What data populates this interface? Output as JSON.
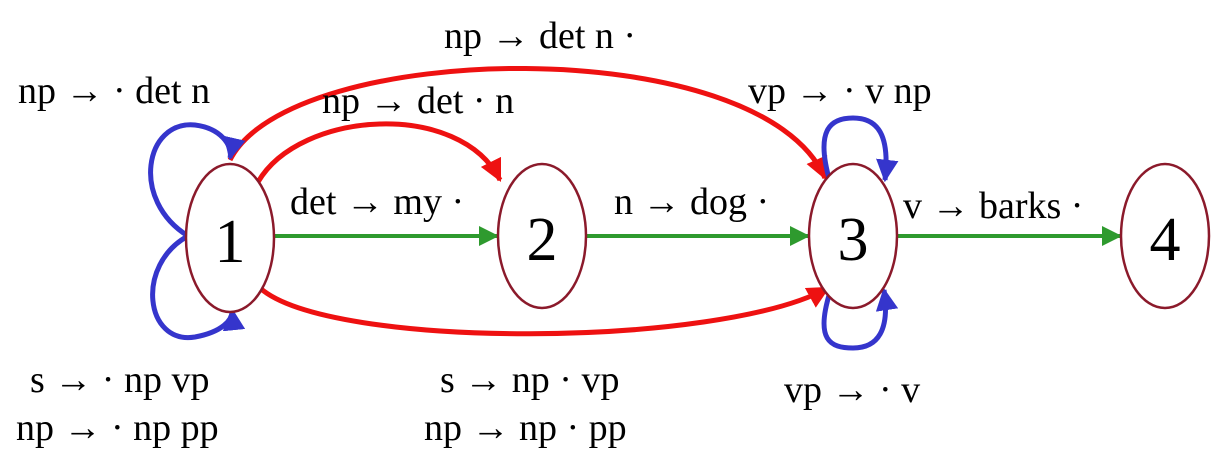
{
  "nodes": [
    {
      "id": "1",
      "label": "1"
    },
    {
      "id": "2",
      "label": "2"
    },
    {
      "id": "3",
      "label": "3"
    },
    {
      "id": "4",
      "label": "4"
    }
  ],
  "colors": {
    "node_stroke": "#8b1a2b",
    "scan_edge": "#2e9a2e",
    "complete_edge": "#ee1111",
    "predict_loop": "#3535cc"
  },
  "edges": {
    "det_my": "det → my ·",
    "n_dog": "n → dog ·",
    "v_barks": "v → barks ·",
    "np_det_dot_n": "np → det · n",
    "np_det_n_dot": "np → det n ·",
    "s_np_dot_vp": "s → np · vp",
    "np_np_dot_pp": "np →  np · pp"
  },
  "loops": {
    "node1_top": "np → · det n",
    "node1_bottom_1": "s → · np vp",
    "node1_bottom_2": "np → · np pp",
    "node3_top": "vp → · v np",
    "node3_bottom": "vp → · v"
  }
}
